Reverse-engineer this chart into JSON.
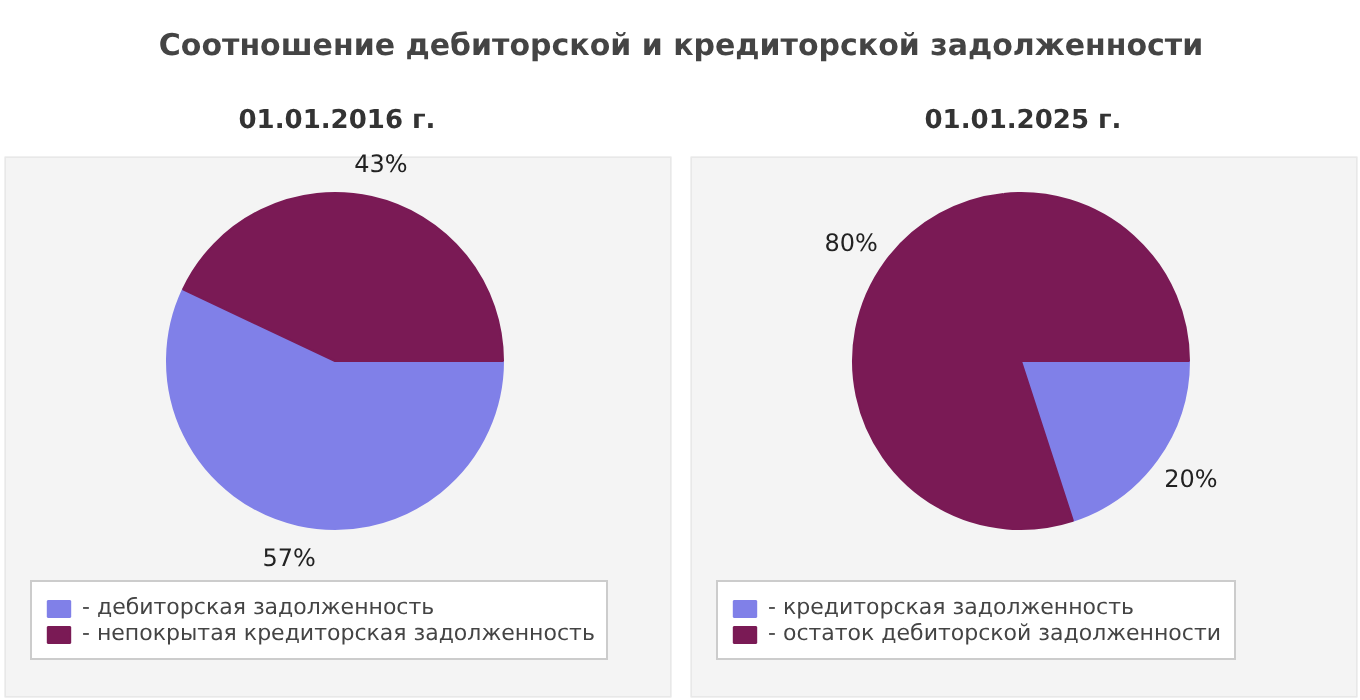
{
  "chart_data": [
    {
      "type": "pie",
      "title": "Соотношение дебиторской и кредиторской задолженности",
      "subtitle": "01.01.2016 г.",
      "categories": [
        "- дебиторская задолженность",
        "- непокрытая кредиторская задолженность"
      ],
      "values": [
        57,
        43
      ],
      "value_labels": [
        "57%",
        "43%"
      ],
      "colors": [
        "#8080e8",
        "#7a1a55"
      ],
      "legend": "bottom"
    },
    {
      "type": "pie",
      "subtitle": "01.01.2025 г.",
      "categories": [
        "- кредиторская задолженность",
        "- остаток дебиторской задолженности"
      ],
      "values": [
        20,
        80
      ],
      "value_labels": [
        "20%",
        "80%"
      ],
      "colors": [
        "#8080e8",
        "#7a1a55"
      ],
      "legend": "bottom"
    }
  ]
}
